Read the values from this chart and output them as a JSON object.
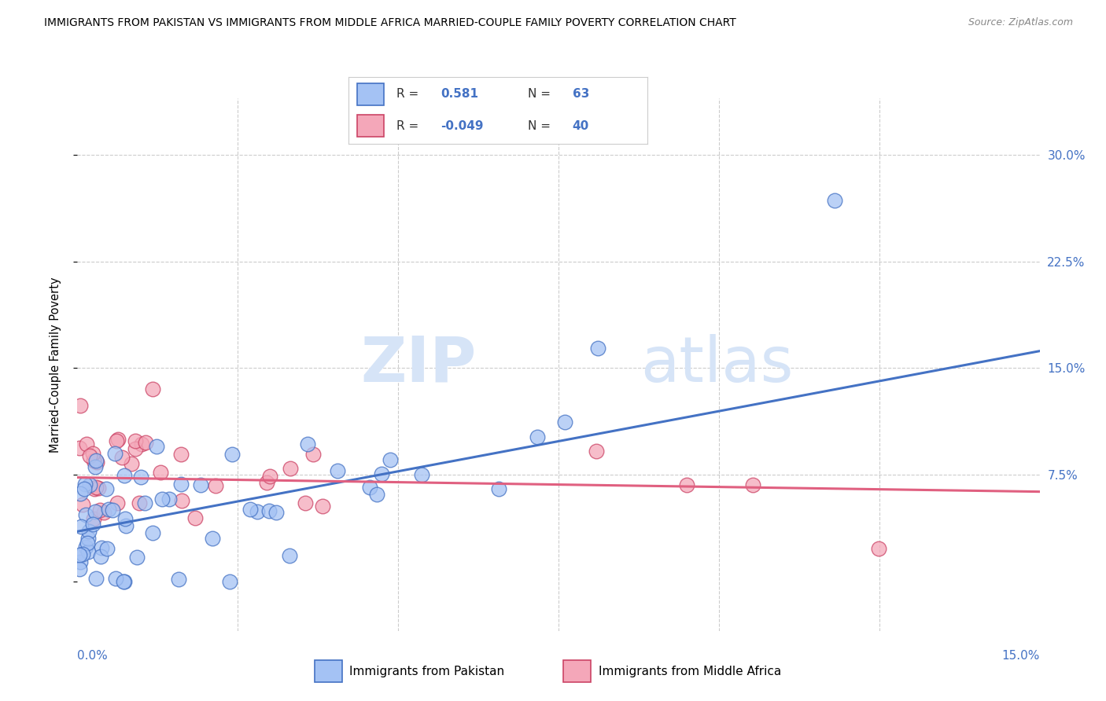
{
  "title": "IMMIGRANTS FROM PAKISTAN VS IMMIGRANTS FROM MIDDLE AFRICA MARRIED-COUPLE FAMILY POVERTY CORRELATION CHART",
  "source": "Source: ZipAtlas.com",
  "ylabel": "Married-Couple Family Poverty",
  "xlim": [
    0.0,
    0.15
  ],
  "ylim": [
    -0.035,
    0.34
  ],
  "yticks": [
    0.0,
    0.075,
    0.15,
    0.225,
    0.3
  ],
  "ytick_labels": [
    "",
    "7.5%",
    "15.0%",
    "22.5%",
    "30.0%"
  ],
  "xtick_label_left": "0.0%",
  "xtick_label_right": "15.0%",
  "R_pakistan": 0.581,
  "N_pakistan": 63,
  "R_middle_africa": -0.049,
  "N_middle_africa": 40,
  "blue_fill": "#a4c2f4",
  "blue_edge": "#4472c4",
  "pink_fill": "#f4a7b9",
  "pink_edge": "#cc4466",
  "blue_line": "#4472c4",
  "pink_line": "#e06080",
  "tick_label_color": "#4472c4",
  "grid_color": "#cccccc",
  "legend_label1": "Immigrants from Pakistan",
  "legend_label2": "Immigrants from Middle Africa",
  "pak_line_x": [
    0.0,
    0.15
  ],
  "pak_line_y": [
    0.035,
    0.162
  ],
  "ma_line_x": [
    0.0,
    0.15
  ],
  "ma_line_y": [
    0.073,
    0.063
  ],
  "watermark_zip": "ZIP",
  "watermark_atlas": "atlas",
  "wm_color": "#d6e4f7"
}
